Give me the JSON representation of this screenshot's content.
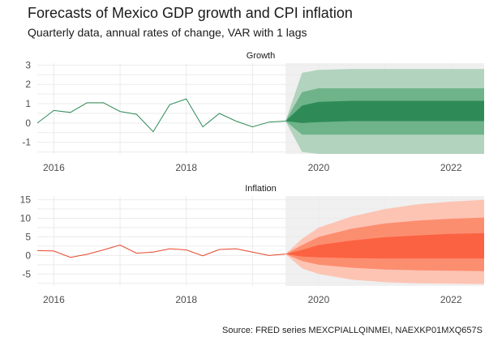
{
  "header": {
    "title": "Forecasts of Mexico GDP growth and CPI inflation",
    "subtitle": "Quarterly data, annual rates of change, VAR with 1 lags"
  },
  "caption": "Source: FRED series MEXCPIALLQINMEI, NAEXKP01MXQ657S",
  "colors": {
    "growth_line": "#2e8b57",
    "growth_band_outer": "#b2d3bd",
    "growth_band_mid": "#6fb38a",
    "growth_band_inner": "#2e8b57",
    "inflation_line": "#e8452c",
    "inflation_band_outer": "#fdc4b4",
    "inflation_band_mid": "#fc8e70",
    "inflation_band_inner": "#fb6242",
    "forecast_shade": "#f0f0f0",
    "grid": "#ebebeb"
  },
  "chart_data": [
    {
      "type": "area",
      "panel_title": "Growth",
      "x_ticks": [
        2016,
        2018,
        2020,
        2022
      ],
      "xlim": [
        2015.75,
        2022.5
      ],
      "ylim": [
        -1.6,
        3.1
      ],
      "y_ticks": [
        -1,
        0,
        1,
        2,
        3
      ],
      "forecast_start": 2019.5,
      "history": {
        "x": [
          2015.75,
          2016.0,
          2016.25,
          2016.5,
          2016.75,
          2017.0,
          2017.25,
          2017.5,
          2017.75,
          2018.0,
          2018.25,
          2018.5,
          2018.75,
          2019.0,
          2019.25,
          2019.5
        ],
        "y": [
          0.0,
          0.65,
          0.55,
          1.05,
          1.05,
          0.6,
          0.45,
          -0.45,
          0.95,
          1.25,
          -0.2,
          0.5,
          0.1,
          -0.2,
          0.05,
          0.1
        ]
      },
      "forecast": {
        "x": [
          2019.5,
          2019.75,
          2020.0,
          2020.5,
          2021.0,
          2021.5,
          2022.0,
          2022.5
        ],
        "lower_80": [
          0.1,
          -1.5,
          -1.6,
          -1.6,
          -1.6,
          -1.6,
          -1.6,
          -1.6
        ],
        "upper_80": [
          0.1,
          2.6,
          2.75,
          2.8,
          2.8,
          2.8,
          2.8,
          2.8
        ],
        "lower_50": [
          0.1,
          -0.6,
          -0.6,
          -0.6,
          -0.6,
          -0.6,
          -0.6,
          -0.6
        ],
        "upper_50": [
          0.1,
          1.6,
          1.8,
          1.8,
          1.8,
          1.8,
          1.8,
          1.8
        ],
        "lower_20": [
          0.1,
          0.0,
          0.05,
          0.1,
          0.1,
          0.1,
          0.1,
          0.1
        ],
        "upper_20": [
          0.1,
          0.9,
          1.1,
          1.15,
          1.15,
          1.15,
          1.15,
          1.15
        ]
      }
    },
    {
      "type": "area",
      "panel_title": "Inflation",
      "x_ticks": [
        2016,
        2018,
        2020,
        2022
      ],
      "xlim": [
        2015.75,
        2022.5
      ],
      "ylim": [
        -8.2,
        16
      ],
      "y_ticks": [
        -5,
        0,
        5,
        10,
        15
      ],
      "forecast_start": 2019.5,
      "history": {
        "x": [
          2015.75,
          2016.0,
          2016.25,
          2016.5,
          2016.75,
          2017.0,
          2017.25,
          2017.5,
          2017.75,
          2018.0,
          2018.25,
          2018.5,
          2018.75,
          2019.0,
          2019.25,
          2019.5
        ],
        "y": [
          1.3,
          1.2,
          -0.5,
          0.3,
          1.5,
          2.8,
          0.6,
          0.9,
          1.8,
          1.5,
          -0.1,
          1.6,
          1.8,
          0.9,
          0.0,
          0.4
        ]
      },
      "forecast": {
        "x": [
          2019.5,
          2019.75,
          2020.0,
          2020.5,
          2021.0,
          2021.5,
          2022.0,
          2022.5
        ],
        "lower_80": [
          0.4,
          -3.5,
          -5.0,
          -6.5,
          -7.2,
          -7.5,
          -7.6,
          -7.7
        ],
        "upper_80": [
          0.4,
          4.5,
          7.5,
          10.5,
          12.5,
          13.8,
          14.5,
          15.0
        ],
        "lower_50": [
          0.4,
          -1.5,
          -2.5,
          -3.3,
          -3.8,
          -4.0,
          -4.1,
          -4.2
        ],
        "upper_50": [
          0.4,
          2.8,
          5.0,
          7.2,
          8.6,
          9.4,
          9.9,
          10.2
        ],
        "lower_20": [
          0.4,
          -0.3,
          -0.5,
          -0.7,
          -0.8,
          -0.8,
          -0.8,
          -0.8
        ],
        "upper_20": [
          0.4,
          1.5,
          2.8,
          4.0,
          4.9,
          5.4,
          5.8,
          6.0
        ]
      }
    }
  ]
}
